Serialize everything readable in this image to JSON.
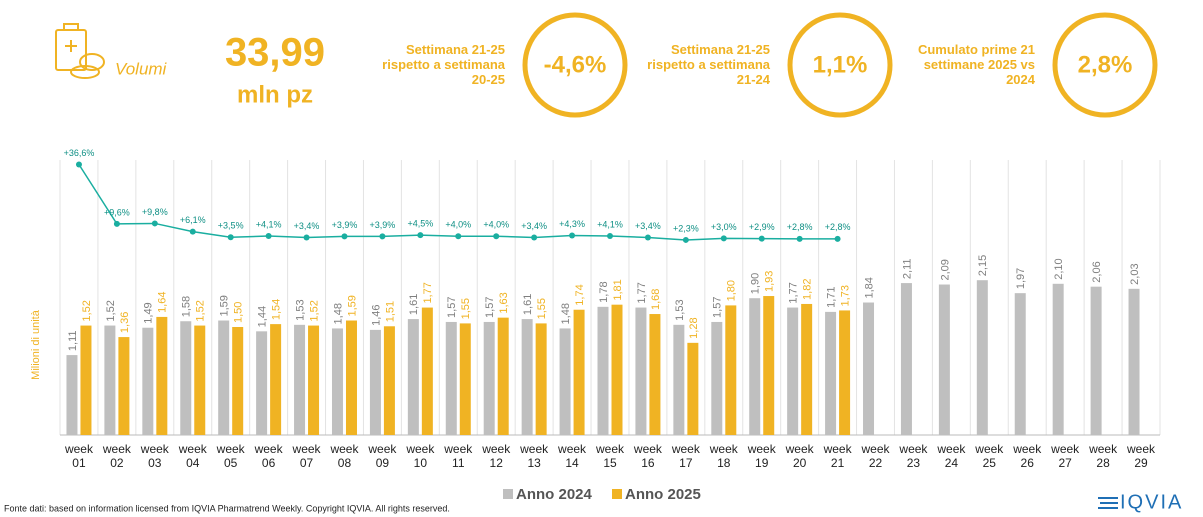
{
  "header": {
    "label": "Volumi",
    "main_value": "33,99",
    "main_unit": "mln pz",
    "kpis": [
      {
        "label": "Settimana 21-25 rispetto a settimana 20-25",
        "value": "-4,6%"
      },
      {
        "label": "Settimana 21-25 rispetto a settimana 21-24",
        "value": "1,1%"
      },
      {
        "label": "Cumulato prime 21 settimane 2025 vs 2024",
        "value": "2,8%"
      }
    ]
  },
  "footer": {
    "source": "Fonte dati: based on information licensed from IQVIA Pharmatrend Weekly. Copyright IQVIA. All rights reserved.",
    "logo": "IQVIA"
  },
  "chart_data": {
    "type": "bar",
    "y_label": "Milioni di unità",
    "categories": [
      "week 01",
      "week 02",
      "week 03",
      "week 04",
      "week 05",
      "week 06",
      "week 07",
      "week 08",
      "week 09",
      "week 10",
      "week 11",
      "week 12",
      "week 13",
      "week 14",
      "week 15",
      "week 16",
      "week 17",
      "week 18",
      "week 19",
      "week 20",
      "week 21",
      "week 22",
      "week 23",
      "week 24",
      "week 25",
      "week 26",
      "week 27",
      "week 28",
      "week 29"
    ],
    "ylim": [
      0,
      2.5
    ],
    "y2lim": [
      0,
      40
    ],
    "legend": "bottom",
    "series": [
      {
        "name": "Anno 2024",
        "color": "#bfbfbf",
        "type": "bar",
        "values": [
          1.11,
          1.52,
          1.49,
          1.58,
          1.59,
          1.44,
          1.53,
          1.48,
          1.46,
          1.61,
          1.57,
          1.57,
          1.61,
          1.48,
          1.78,
          1.77,
          1.53,
          1.57,
          1.9,
          1.77,
          1.71,
          1.84,
          2.11,
          2.09,
          2.15,
          1.97,
          2.1,
          2.06,
          2.03
        ],
        "value_labels": [
          "1,11",
          "1,52",
          "1,49",
          "1,58",
          "1,59",
          "1,44",
          "1,53",
          "1,48",
          "1,46",
          "1,61",
          "1,57",
          "1,57",
          "1,61",
          "1,48",
          "1,78",
          "1,77",
          "1,53",
          "1,57",
          "1,90",
          "1,77",
          "1,71",
          "1,84",
          "2,11",
          "2,09",
          "2,15",
          "1,97",
          "2,10",
          "2,06",
          "2,03"
        ]
      },
      {
        "name": "Anno 2025",
        "color": "#f0b323",
        "type": "bar",
        "values": [
          1.52,
          1.36,
          1.64,
          1.52,
          1.5,
          1.54,
          1.52,
          1.59,
          1.51,
          1.77,
          1.55,
          1.63,
          1.55,
          1.74,
          1.81,
          1.68,
          1.28,
          1.8,
          1.93,
          1.82,
          1.73,
          null,
          null,
          null,
          null,
          null,
          null,
          null,
          null
        ],
        "value_labels": [
          "1,52",
          "1,36",
          "1,64",
          "1,52",
          "1,50",
          "1,54",
          "1,52",
          "1,59",
          "1,51",
          "1,77",
          "1,55",
          "1,63",
          "1,55",
          "1,74",
          "1,81",
          "1,68",
          "1,28",
          "1,80",
          "1,93",
          "1,82",
          "1,73",
          null,
          null,
          null,
          null,
          null,
          null,
          null,
          null
        ]
      },
      {
        "color": "#1aaea0",
        "type": "line",
        "axis": "y2",
        "values": [
          36.6,
          9.6,
          9.8,
          6.1,
          3.5,
          4.1,
          3.4,
          3.9,
          3.9,
          4.5,
          4.0,
          4.0,
          3.4,
          4.3,
          4.1,
          3.4,
          2.3,
          3.0,
          2.9,
          2.8,
          2.8,
          null,
          null,
          null,
          null,
          null,
          null,
          null,
          null
        ],
        "value_labels": [
          "+36,6%",
          "+9,6%",
          "+9,8%",
          "+6,1%",
          "+3,5%",
          "+4,1%",
          "+3,4%",
          "+3,9%",
          "+3,9%",
          "+4,5%",
          "+4,0%",
          "+4,0%",
          "+3,4%",
          "+4,3%",
          "+4,1%",
          "+3,4%",
          "+2,3%",
          "+3,0%",
          "+2,9%",
          "+2,8%",
          "+2,8%",
          null,
          null,
          null,
          null,
          null,
          null,
          null,
          null
        ]
      }
    ]
  }
}
